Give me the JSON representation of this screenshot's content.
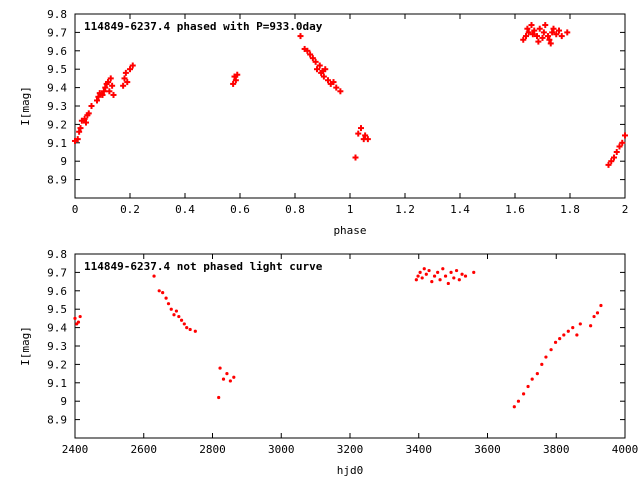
{
  "style": {
    "point_color": "#ff0000",
    "frame_color": "#000000",
    "background": "#ffffff"
  },
  "chart_data": [
    {
      "type": "scatter",
      "title": "114849-6237.4 phased with P=933.0day",
      "xlabel": "phase",
      "ylabel": "I[mag]",
      "xlim": [
        0,
        2
      ],
      "ylim": [
        8.8,
        9.8
      ],
      "y_inverted": true,
      "grid": false,
      "xticks": [
        "0",
        "0.2",
        "0.4",
        "0.6",
        "0.8",
        "1",
        "1.2",
        "1.4",
        "1.6",
        "1.8",
        "2"
      ],
      "yticks": [
        "8.9",
        "9",
        "9.1",
        "9.2",
        "9.3",
        "9.4",
        "9.5",
        "9.6",
        "9.7",
        "9.8"
      ],
      "series": [
        {
          "marker": "plus",
          "x": [
            0.0,
            0.01,
            0.015,
            0.02,
            0.025,
            0.035,
            0.04,
            0.045,
            0.05,
            0.06,
            0.08,
            0.085,
            0.09,
            0.1,
            0.105,
            0.11,
            0.115,
            0.12,
            0.125,
            0.13,
            0.135,
            0.14,
            0.175,
            0.18,
            0.185,
            0.19,
            0.2,
            0.21,
            0.575,
            0.58,
            0.585,
            0.59,
            0.82,
            0.835,
            0.845,
            0.855,
            0.865,
            0.875,
            0.88,
            0.89,
            0.895,
            0.9,
            0.905,
            0.91,
            0.92,
            0.93,
            0.94,
            0.95,
            0.965,
            1.02,
            1.03,
            1.04,
            1.05,
            1.055,
            1.065,
            1.63,
            1.64,
            1.645,
            1.65,
            1.66,
            1.665,
            1.67,
            1.68,
            1.685,
            1.69,
            1.7,
            1.705,
            1.71,
            1.72,
            1.725,
            1.73,
            1.735,
            1.74,
            1.75,
            1.76,
            1.77,
            1.79,
            1.94,
            1.95,
            1.96,
            1.97,
            1.98,
            1.99,
            2.0
          ],
          "y": [
            9.11,
            9.12,
            9.16,
            9.18,
            9.22,
            9.23,
            9.21,
            9.25,
            9.26,
            9.3,
            9.33,
            9.35,
            9.37,
            9.36,
            9.38,
            9.4,
            9.42,
            9.43,
            9.38,
            9.45,
            9.41,
            9.36,
            9.41,
            9.45,
            9.48,
            9.43,
            9.5,
            9.52,
            9.42,
            9.46,
            9.44,
            9.47,
            9.68,
            9.61,
            9.6,
            9.58,
            9.56,
            9.54,
            9.5,
            9.52,
            9.48,
            9.49,
            9.46,
            9.5,
            9.44,
            9.42,
            9.43,
            9.4,
            9.38,
            9.02,
            9.15,
            9.18,
            9.12,
            9.14,
            9.12,
            9.66,
            9.68,
            9.72,
            9.7,
            9.74,
            9.69,
            9.71,
            9.68,
            9.65,
            9.72,
            9.67,
            9.7,
            9.74,
            9.68,
            9.66,
            9.64,
            9.7,
            9.72,
            9.69,
            9.71,
            9.68,
            9.7,
            8.98,
            9.0,
            9.02,
            9.05,
            9.08,
            9.1,
            9.14
          ]
        }
      ]
    },
    {
      "type": "scatter",
      "title": "114849-6237.4 not phased light curve",
      "xlabel": "hjd0",
      "ylabel": "I[mag]",
      "xlim": [
        2400,
        4000
      ],
      "ylim": [
        8.8,
        9.8
      ],
      "y_inverted": true,
      "grid": false,
      "xticks": [
        "2400",
        "2600",
        "2800",
        "3000",
        "3200",
        "3400",
        "3600",
        "3800",
        "4000"
      ],
      "yticks": [
        "8.9",
        "9",
        "9.1",
        "9.2",
        "9.3",
        "9.4",
        "9.5",
        "9.6",
        "9.7",
        "9.8"
      ],
      "series": [
        {
          "marker": "dot",
          "x": [
            2400,
            2405,
            2410,
            2415,
            2630,
            2645,
            2655,
            2665,
            2672,
            2680,
            2688,
            2695,
            2702,
            2710,
            2718,
            2725,
            2735,
            2750,
            2818,
            2822,
            2832,
            2842,
            2852,
            2862,
            3393,
            3398,
            3404,
            3410,
            3416,
            3422,
            3430,
            3438,
            3446,
            3455,
            3462,
            3470,
            3478,
            3486,
            3494,
            3502,
            3510,
            3518,
            3526,
            3536,
            3560,
            3678,
            3690,
            3705,
            3718,
            3730,
            3745,
            3758,
            3770,
            3785,
            3798,
            3810,
            3822,
            3835,
            3848,
            3860,
            3870,
            3900,
            3910,
            3920,
            3930
          ],
          "y": [
            9.45,
            9.42,
            9.43,
            9.46,
            9.68,
            9.6,
            9.59,
            9.56,
            9.53,
            9.5,
            9.47,
            9.49,
            9.46,
            9.44,
            9.42,
            9.4,
            9.39,
            9.38,
            9.02,
            9.18,
            9.12,
            9.15,
            9.11,
            9.13,
            9.66,
            9.68,
            9.7,
            9.67,
            9.72,
            9.69,
            9.71,
            9.65,
            9.68,
            9.7,
            9.66,
            9.72,
            9.68,
            9.64,
            9.7,
            9.67,
            9.71,
            9.66,
            9.69,
            9.68,
            9.7,
            8.97,
            9.0,
            9.04,
            9.08,
            9.12,
            9.15,
            9.2,
            9.24,
            9.28,
            9.32,
            9.34,
            9.36,
            9.38,
            9.4,
            9.36,
            9.42,
            9.41,
            9.46,
            9.48,
            9.52
          ]
        }
      ]
    }
  ]
}
